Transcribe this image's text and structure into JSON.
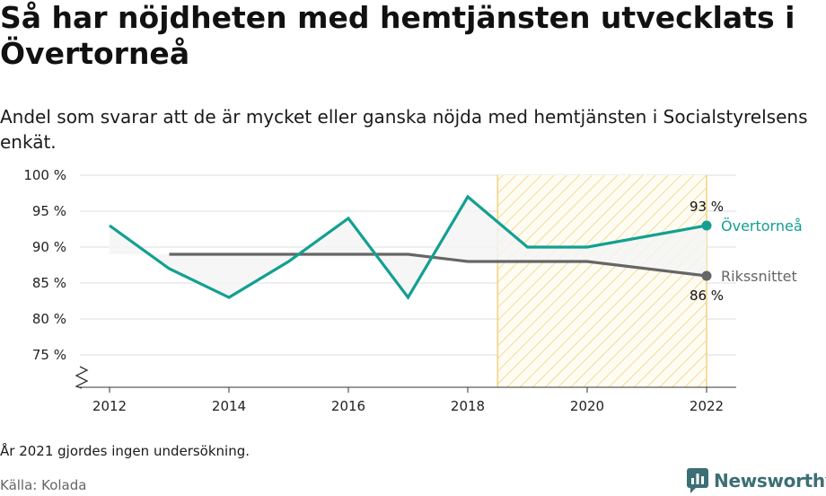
{
  "title": "Så har nöjdheten med hemtjänsten utvecklats i Övertorneå",
  "subtitle": "Andel som svarar att de är mycket eller ganska nöjda med hemtjänsten i Socialstyrelsens enkät.",
  "note": "År 2021 gjordes ingen undersökning.",
  "source": "Källa: Kolada",
  "brand": {
    "name": "Newsworthy",
    "icon": "newsworthy-logo-icon",
    "color": "#3c6f75"
  },
  "chart_data": {
    "type": "line",
    "x_ticks": [
      2012,
      2014,
      2016,
      2018,
      2020,
      2022
    ],
    "y_ticks": [
      {
        "value": 75,
        "label": "75 %"
      },
      {
        "value": 80,
        "label": "80 %"
      },
      {
        "value": 85,
        "label": "85 %"
      },
      {
        "value": 90,
        "label": "90 %"
      },
      {
        "value": 95,
        "label": "95 %"
      },
      {
        "value": 100,
        "label": "100 %"
      }
    ],
    "xlim": [
      2011,
      2023
    ],
    "ylim": [
      70.5,
      100
    ],
    "y_axis_break": true,
    "grid": "horizontal",
    "highlight_range": [
      2018.5,
      2022
    ],
    "series": [
      {
        "name": "Övertorneå",
        "color": "#13a092",
        "points": [
          [
            2012,
            93
          ],
          [
            2013,
            87
          ],
          [
            2014,
            83
          ],
          [
            2015,
            88
          ],
          [
            2016,
            94
          ],
          [
            2017,
            83
          ],
          [
            2018,
            97
          ],
          [
            2019,
            90
          ],
          [
            2020,
            90
          ],
          [
            2022,
            93
          ]
        ],
        "end_label": "93 %"
      },
      {
        "name": "Rikssnittet",
        "color": "#666666",
        "points": [
          [
            2013,
            89
          ],
          [
            2014,
            89
          ],
          [
            2015,
            89
          ],
          [
            2016,
            89
          ],
          [
            2017,
            89
          ],
          [
            2018,
            88
          ],
          [
            2019,
            88
          ],
          [
            2020,
            88
          ],
          [
            2022,
            86
          ]
        ],
        "end_label": "86 %"
      }
    ]
  }
}
